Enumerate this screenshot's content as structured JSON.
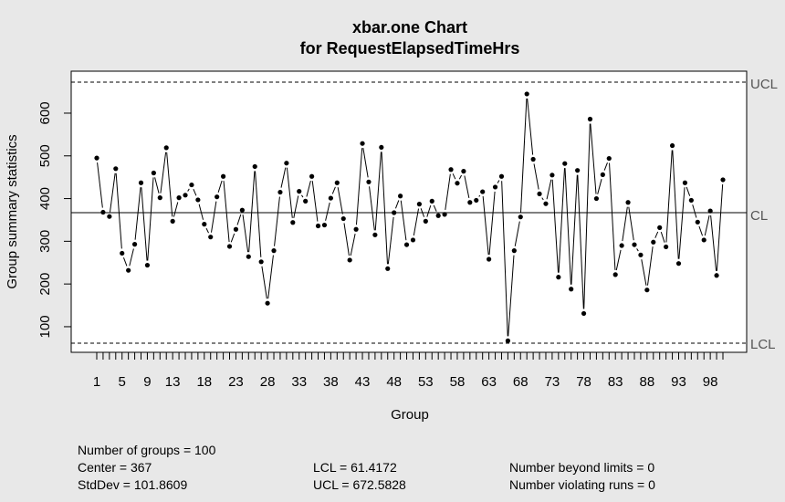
{
  "chart_data": {
    "type": "line",
    "title": "xbar.one Chart",
    "subtitle": "for RequestElapsedTimeHrs",
    "xlabel": "Group",
    "ylabel": "Group summary statistics",
    "xlim": [
      1,
      100
    ],
    "ylim": [
      61.4,
      672.6
    ],
    "y_ticks": [
      100,
      200,
      300,
      400,
      500,
      600
    ],
    "x_tick_labels": [
      "1",
      "5",
      "9",
      "13",
      "18",
      "23",
      "28",
      "33",
      "38",
      "43",
      "48",
      "53",
      "58",
      "63",
      "68",
      "73",
      "78",
      "83",
      "88",
      "93",
      "98"
    ],
    "x_label_positions": [
      1,
      5,
      9,
      13,
      18,
      23,
      28,
      33,
      38,
      43,
      48,
      53,
      58,
      63,
      68,
      73,
      78,
      83,
      88,
      93,
      98
    ],
    "control_limits": {
      "center": 367,
      "ucl": 672.5828,
      "lcl": 61.4172
    },
    "limit_labels": {
      "ucl": "UCL",
      "cl": "CL",
      "lcl": "LCL"
    },
    "grid": false,
    "series": [
      {
        "values": [
          495,
          368,
          358,
          470,
          272,
          232,
          293,
          437,
          244,
          460,
          402,
          519,
          347,
          402,
          408,
          432,
          397,
          340,
          310,
          404,
          452,
          288,
          328,
          373,
          264,
          475,
          252,
          155,
          278,
          415,
          483,
          344,
          417,
          394,
          452,
          336,
          338,
          401,
          437,
          353,
          256,
          328,
          529,
          439,
          315,
          520,
          236,
          367,
          406,
          292,
          303,
          387,
          347,
          394,
          360,
          363,
          468,
          436,
          464,
          391,
          396,
          416,
          258,
          427,
          452,
          67,
          278,
          357,
          645,
          492,
          411,
          388,
          455,
          216,
          482,
          188,
          466,
          131,
          586,
          400,
          456,
          494,
          222,
          290,
          391,
          292,
          268,
          186,
          298,
          332,
          287,
          524,
          248,
          437,
          396,
          345,
          303,
          371,
          220,
          444
        ]
      }
    ]
  },
  "stats": {
    "groups": "Number of groups = 100",
    "center": "Center = 367",
    "stddev": "StdDev = 101.8609",
    "lcl": "LCL = 61.4172",
    "ucl": "UCL = 672.5828",
    "beyond": "Number beyond limits = 0",
    "runs": "Number violating runs = 0"
  }
}
